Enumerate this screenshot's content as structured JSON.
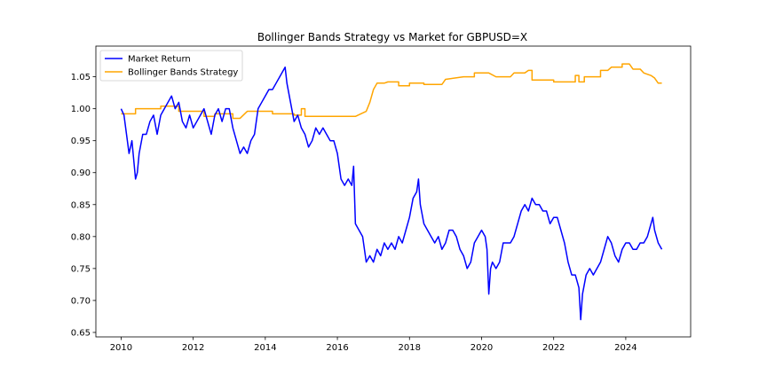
{
  "chart_data": {
    "type": "line",
    "title": "Bollinger Bands Strategy vs Market for GBPUSD=X",
    "xlabel": "",
    "ylabel": "",
    "x_ticks": [
      2010,
      2012,
      2014,
      2016,
      2018,
      2020,
      2022,
      2024
    ],
    "y_ticks": [
      "0.65",
      "0.70",
      "0.75",
      "0.80",
      "0.85",
      "0.90",
      "0.95",
      "1.00",
      "1.05"
    ],
    "xlim": [
      2009.3,
      2025.8
    ],
    "ylim": [
      0.643,
      1.098
    ],
    "grid": false,
    "legend_position": "upper-left",
    "series": [
      {
        "name": "Market Return",
        "color": "#0000ff",
        "points": [
          [
            2010.0,
            1.0
          ],
          [
            2010.08,
            0.99
          ],
          [
            2010.15,
            0.96
          ],
          [
            2010.22,
            0.93
          ],
          [
            2010.3,
            0.95
          ],
          [
            2010.35,
            0.92
          ],
          [
            2010.4,
            0.89
          ],
          [
            2010.45,
            0.9
          ],
          [
            2010.5,
            0.93
          ],
          [
            2010.6,
            0.96
          ],
          [
            2010.7,
            0.96
          ],
          [
            2010.8,
            0.98
          ],
          [
            2010.9,
            0.99
          ],
          [
            2011.0,
            0.96
          ],
          [
            2011.1,
            0.99
          ],
          [
            2011.2,
            1.0
          ],
          [
            2011.3,
            1.01
          ],
          [
            2011.4,
            1.02
          ],
          [
            2011.5,
            1.0
          ],
          [
            2011.6,
            1.01
          ],
          [
            2011.7,
            0.98
          ],
          [
            2011.8,
            0.97
          ],
          [
            2011.9,
            0.99
          ],
          [
            2012.0,
            0.97
          ],
          [
            2012.1,
            0.98
          ],
          [
            2012.2,
            0.99
          ],
          [
            2012.3,
            1.0
          ],
          [
            2012.4,
            0.98
          ],
          [
            2012.5,
            0.96
          ],
          [
            2012.6,
            0.99
          ],
          [
            2012.7,
            1.0
          ],
          [
            2012.8,
            0.98
          ],
          [
            2012.9,
            1.0
          ],
          [
            2013.0,
            1.0
          ],
          [
            2013.1,
            0.97
          ],
          [
            2013.2,
            0.95
          ],
          [
            2013.3,
            0.93
          ],
          [
            2013.4,
            0.94
          ],
          [
            2013.5,
            0.93
          ],
          [
            2013.6,
            0.95
          ],
          [
            2013.7,
            0.96
          ],
          [
            2013.8,
            1.0
          ],
          [
            2013.9,
            1.01
          ],
          [
            2014.0,
            1.02
          ],
          [
            2014.1,
            1.03
          ],
          [
            2014.2,
            1.03
          ],
          [
            2014.3,
            1.04
          ],
          [
            2014.4,
            1.05
          ],
          [
            2014.5,
            1.06
          ],
          [
            2014.55,
            1.065
          ],
          [
            2014.6,
            1.04
          ],
          [
            2014.7,
            1.01
          ],
          [
            2014.8,
            0.98
          ],
          [
            2014.9,
            0.99
          ],
          [
            2015.0,
            0.97
          ],
          [
            2015.1,
            0.96
          ],
          [
            2015.2,
            0.94
          ],
          [
            2015.3,
            0.95
          ],
          [
            2015.4,
            0.97
          ],
          [
            2015.5,
            0.96
          ],
          [
            2015.6,
            0.97
          ],
          [
            2015.7,
            0.96
          ],
          [
            2015.8,
            0.95
          ],
          [
            2015.9,
            0.95
          ],
          [
            2016.0,
            0.93
          ],
          [
            2016.1,
            0.89
          ],
          [
            2016.2,
            0.88
          ],
          [
            2016.3,
            0.89
          ],
          [
            2016.4,
            0.88
          ],
          [
            2016.45,
            0.91
          ],
          [
            2016.5,
            0.82
          ],
          [
            2016.6,
            0.81
          ],
          [
            2016.7,
            0.8
          ],
          [
            2016.8,
            0.76
          ],
          [
            2016.9,
            0.77
          ],
          [
            2017.0,
            0.76
          ],
          [
            2017.1,
            0.78
          ],
          [
            2017.2,
            0.77
          ],
          [
            2017.3,
            0.79
          ],
          [
            2017.4,
            0.78
          ],
          [
            2017.5,
            0.79
          ],
          [
            2017.6,
            0.78
          ],
          [
            2017.7,
            0.8
          ],
          [
            2017.8,
            0.79
          ],
          [
            2017.9,
            0.81
          ],
          [
            2018.0,
            0.83
          ],
          [
            2018.1,
            0.86
          ],
          [
            2018.2,
            0.87
          ],
          [
            2018.25,
            0.89
          ],
          [
            2018.3,
            0.85
          ],
          [
            2018.4,
            0.82
          ],
          [
            2018.5,
            0.81
          ],
          [
            2018.6,
            0.8
          ],
          [
            2018.7,
            0.79
          ],
          [
            2018.8,
            0.8
          ],
          [
            2018.9,
            0.78
          ],
          [
            2019.0,
            0.79
          ],
          [
            2019.1,
            0.81
          ],
          [
            2019.2,
            0.81
          ],
          [
            2019.3,
            0.8
          ],
          [
            2019.4,
            0.78
          ],
          [
            2019.5,
            0.77
          ],
          [
            2019.6,
            0.75
          ],
          [
            2019.7,
            0.76
          ],
          [
            2019.8,
            0.79
          ],
          [
            2019.9,
            0.8
          ],
          [
            2020.0,
            0.81
          ],
          [
            2020.1,
            0.8
          ],
          [
            2020.15,
            0.78
          ],
          [
            2020.2,
            0.71
          ],
          [
            2020.25,
            0.75
          ],
          [
            2020.3,
            0.76
          ],
          [
            2020.4,
            0.75
          ],
          [
            2020.5,
            0.76
          ],
          [
            2020.6,
            0.79
          ],
          [
            2020.7,
            0.79
          ],
          [
            2020.8,
            0.79
          ],
          [
            2020.9,
            0.8
          ],
          [
            2021.0,
            0.82
          ],
          [
            2021.1,
            0.84
          ],
          [
            2021.2,
            0.85
          ],
          [
            2021.3,
            0.84
          ],
          [
            2021.4,
            0.86
          ],
          [
            2021.5,
            0.85
          ],
          [
            2021.6,
            0.85
          ],
          [
            2021.7,
            0.84
          ],
          [
            2021.8,
            0.84
          ],
          [
            2021.9,
            0.82
          ],
          [
            2022.0,
            0.83
          ],
          [
            2022.1,
            0.83
          ],
          [
            2022.2,
            0.81
          ],
          [
            2022.3,
            0.79
          ],
          [
            2022.4,
            0.76
          ],
          [
            2022.5,
            0.74
          ],
          [
            2022.6,
            0.74
          ],
          [
            2022.7,
            0.72
          ],
          [
            2022.75,
            0.67
          ],
          [
            2022.8,
            0.71
          ],
          [
            2022.9,
            0.74
          ],
          [
            2023.0,
            0.75
          ],
          [
            2023.1,
            0.74
          ],
          [
            2023.2,
            0.75
          ],
          [
            2023.3,
            0.76
          ],
          [
            2023.4,
            0.78
          ],
          [
            2023.5,
            0.8
          ],
          [
            2023.6,
            0.79
          ],
          [
            2023.7,
            0.77
          ],
          [
            2023.8,
            0.76
          ],
          [
            2023.9,
            0.78
          ],
          [
            2024.0,
            0.79
          ],
          [
            2024.1,
            0.79
          ],
          [
            2024.2,
            0.78
          ],
          [
            2024.3,
            0.78
          ],
          [
            2024.4,
            0.79
          ],
          [
            2024.5,
            0.79
          ],
          [
            2024.6,
            0.8
          ],
          [
            2024.7,
            0.82
          ],
          [
            2024.75,
            0.83
          ],
          [
            2024.8,
            0.81
          ],
          [
            2024.9,
            0.79
          ],
          [
            2025.0,
            0.78
          ]
        ]
      },
      {
        "name": "Bollinger Bands Strategy",
        "color": "#ffa500",
        "points": [
          [
            2010.0,
            0.992
          ],
          [
            2010.4,
            0.992
          ],
          [
            2010.4,
            1.0
          ],
          [
            2011.1,
            1.0
          ],
          [
            2011.1,
            1.004
          ],
          [
            2011.6,
            1.004
          ],
          [
            2011.6,
            0.996
          ],
          [
            2012.3,
            0.996
          ],
          [
            2012.3,
            0.988
          ],
          [
            2012.6,
            0.988
          ],
          [
            2012.6,
            0.992
          ],
          [
            2013.1,
            0.992
          ],
          [
            2013.1,
            0.985
          ],
          [
            2013.3,
            0.985
          ],
          [
            2013.5,
            0.996
          ],
          [
            2014.2,
            0.996
          ],
          [
            2014.2,
            0.992
          ],
          [
            2014.8,
            0.992
          ],
          [
            2014.8,
            0.99
          ],
          [
            2015.0,
            0.99
          ],
          [
            2015.0,
            1.0
          ],
          [
            2015.1,
            1.0
          ],
          [
            2015.1,
            0.988
          ],
          [
            2016.5,
            0.988
          ],
          [
            2016.8,
            0.996
          ],
          [
            2016.9,
            1.01
          ],
          [
            2017.0,
            1.03
          ],
          [
            2017.1,
            1.04
          ],
          [
            2017.3,
            1.04
          ],
          [
            2017.4,
            1.042
          ],
          [
            2017.7,
            1.042
          ],
          [
            2017.7,
            1.036
          ],
          [
            2018.0,
            1.036
          ],
          [
            2018.0,
            1.04
          ],
          [
            2018.4,
            1.04
          ],
          [
            2018.4,
            1.038
          ],
          [
            2018.9,
            1.038
          ],
          [
            2019.0,
            1.046
          ],
          [
            2019.5,
            1.05
          ],
          [
            2019.8,
            1.05
          ],
          [
            2019.8,
            1.056
          ],
          [
            2020.2,
            1.056
          ],
          [
            2020.4,
            1.05
          ],
          [
            2020.8,
            1.05
          ],
          [
            2020.9,
            1.056
          ],
          [
            2021.2,
            1.056
          ],
          [
            2021.3,
            1.06
          ],
          [
            2021.4,
            1.06
          ],
          [
            2021.4,
            1.045
          ],
          [
            2022.0,
            1.045
          ],
          [
            2022.0,
            1.042
          ],
          [
            2022.6,
            1.042
          ],
          [
            2022.6,
            1.052
          ],
          [
            2022.7,
            1.052
          ],
          [
            2022.7,
            1.042
          ],
          [
            2022.85,
            1.042
          ],
          [
            2022.85,
            1.05
          ],
          [
            2023.3,
            1.05
          ],
          [
            2023.3,
            1.06
          ],
          [
            2023.5,
            1.06
          ],
          [
            2023.6,
            1.065
          ],
          [
            2023.9,
            1.065
          ],
          [
            2023.9,
            1.07
          ],
          [
            2024.1,
            1.07
          ],
          [
            2024.2,
            1.062
          ],
          [
            2024.4,
            1.062
          ],
          [
            2024.5,
            1.056
          ],
          [
            2024.7,
            1.052
          ],
          [
            2024.8,
            1.048
          ],
          [
            2024.9,
            1.04
          ],
          [
            2025.0,
            1.04
          ]
        ]
      }
    ]
  }
}
